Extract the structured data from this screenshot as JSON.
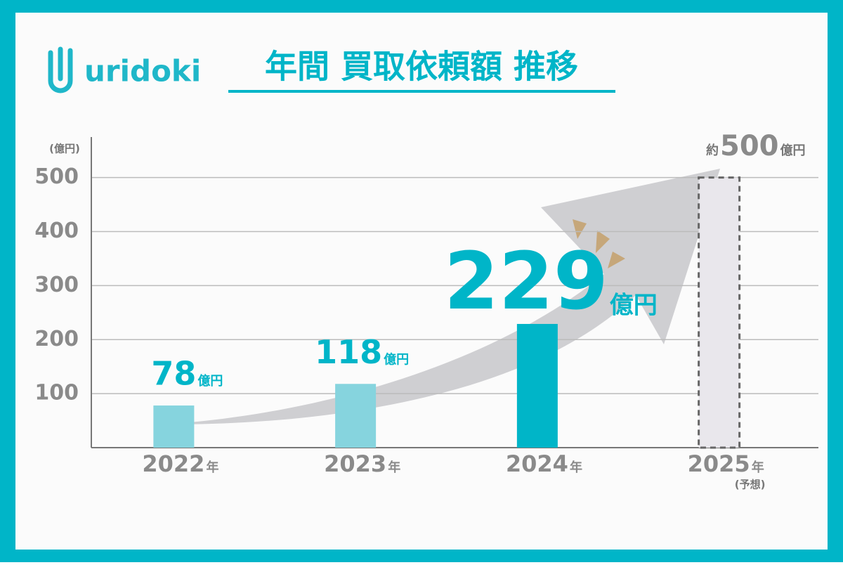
{
  "brand": "uridoki",
  "chart_data": {
    "type": "bar",
    "title": "年間 買取依頼額 推移",
    "y_unit": "(億円)",
    "categories": [
      "2022",
      "2023",
      "2024",
      "2025"
    ],
    "category_suffix": "年",
    "forecast_note": "(予想)",
    "values": [
      78,
      118,
      229,
      500
    ],
    "value_unit": "億円",
    "forecast_prefix": "約",
    "colors": [
      "#86d4de",
      "#86d4de",
      "#00b5c8",
      "#e9e7ec"
    ],
    "ylim": [
      0,
      575
    ],
    "yticks": [
      100,
      200,
      300,
      400,
      500
    ],
    "grid": true
  }
}
